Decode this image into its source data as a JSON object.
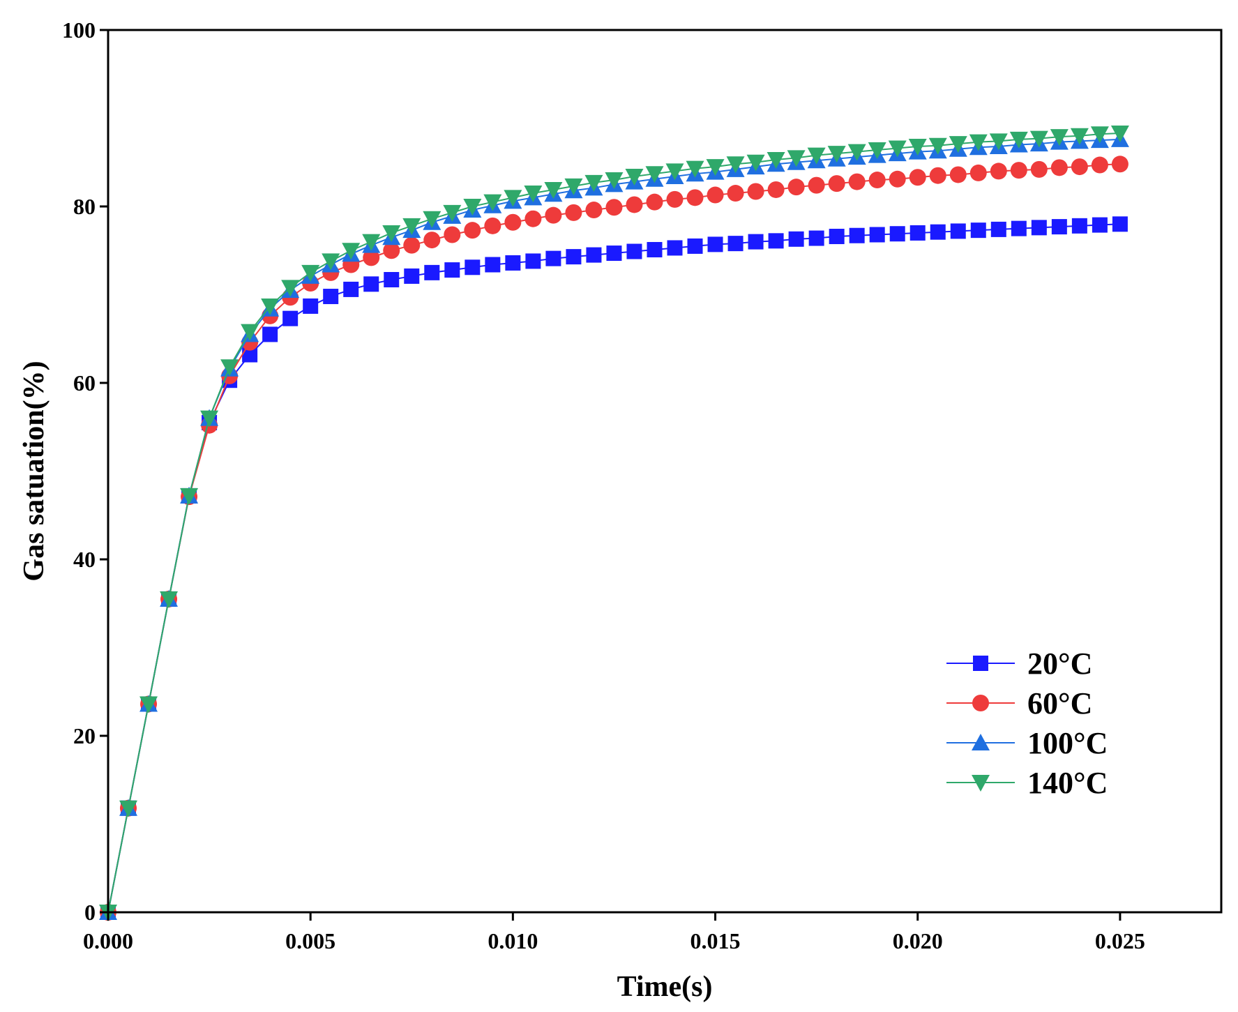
{
  "chart_data": {
    "type": "line",
    "title": "",
    "xlabel": "Time(s)",
    "ylabel": "Gas satuation(%)",
    "xlim": [
      0,
      0.0275
    ],
    "ylim": [
      0,
      100
    ],
    "xticks": [
      0,
      0.005,
      0.01,
      0.015,
      0.02,
      0.025
    ],
    "xtick_labels": [
      "0.000",
      "0.005",
      "0.010",
      "0.015",
      "0.020",
      "0.025"
    ],
    "yticks": [
      0,
      20,
      40,
      60,
      80,
      100
    ],
    "ytick_labels": [
      "0",
      "20",
      "40",
      "60",
      "80",
      "100"
    ],
    "grid": false,
    "legend_position": "lower-right",
    "x": [
      0,
      0.0005,
      0.001,
      0.0015,
      0.002,
      0.0025,
      0.003,
      0.0035,
      0.004,
      0.0045,
      0.005,
      0.0055,
      0.006,
      0.0065,
      0.007,
      0.0075,
      0.008,
      0.0085,
      0.009,
      0.0095,
      0.01,
      0.0105,
      0.011,
      0.0115,
      0.012,
      0.0125,
      0.013,
      0.0135,
      0.014,
      0.0145,
      0.015,
      0.0155,
      0.016,
      0.0165,
      0.017,
      0.0175,
      0.018,
      0.0185,
      0.019,
      0.0195,
      0.02,
      0.0205,
      0.021,
      0.0215,
      0.022,
      0.0225,
      0.023,
      0.0235,
      0.024,
      0.0245,
      0.025
    ],
    "series": [
      {
        "name": "20°C",
        "color": "#1a1aff",
        "marker": "square",
        "values": [
          0,
          11.8,
          23.6,
          35.5,
          47.2,
          55.5,
          60.3,
          63.2,
          65.5,
          67.3,
          68.7,
          69.8,
          70.6,
          71.2,
          71.7,
          72.1,
          72.5,
          72.8,
          73.1,
          73.4,
          73.6,
          73.8,
          74.1,
          74.3,
          74.5,
          74.7,
          74.9,
          75.1,
          75.3,
          75.5,
          75.7,
          75.8,
          76.0,
          76.1,
          76.3,
          76.4,
          76.6,
          76.7,
          76.8,
          76.9,
          77.0,
          77.1,
          77.2,
          77.3,
          77.4,
          77.5,
          77.6,
          77.7,
          77.8,
          77.9,
          78.0
        ]
      },
      {
        "name": "60°C",
        "color": "#ee3b3b",
        "marker": "circle",
        "values": [
          0,
          11.8,
          23.6,
          35.5,
          47.1,
          55.2,
          60.8,
          64.6,
          67.6,
          69.7,
          71.3,
          72.5,
          73.4,
          74.2,
          75.0,
          75.6,
          76.2,
          76.8,
          77.3,
          77.8,
          78.2,
          78.6,
          79.0,
          79.3,
          79.6,
          79.9,
          80.2,
          80.5,
          80.8,
          81.0,
          81.3,
          81.5,
          81.7,
          81.9,
          82.2,
          82.4,
          82.6,
          82.8,
          83.0,
          83.1,
          83.3,
          83.5,
          83.6,
          83.8,
          84.0,
          84.1,
          84.2,
          84.4,
          84.5,
          84.7,
          84.8
        ]
      },
      {
        "name": "100°C",
        "color": "#1f6fe0",
        "marker": "triangle-up",
        "values": [
          0,
          11.8,
          23.6,
          35.5,
          47.2,
          56.0,
          61.6,
          65.5,
          68.4,
          70.5,
          72.1,
          73.4,
          74.6,
          75.6,
          76.5,
          77.3,
          78.2,
          78.9,
          79.6,
          80.1,
          80.6,
          81.0,
          81.4,
          81.8,
          82.1,
          82.5,
          82.8,
          83.1,
          83.4,
          83.7,
          83.9,
          84.2,
          84.5,
          84.8,
          85.0,
          85.2,
          85.4,
          85.6,
          85.8,
          86.0,
          86.2,
          86.3,
          86.5,
          86.7,
          86.8,
          87.0,
          87.1,
          87.3,
          87.4,
          87.5,
          87.6
        ]
      },
      {
        "name": "140°C",
        "color": "#2fa86a",
        "marker": "triangle-down",
        "values": [
          0,
          11.8,
          23.6,
          35.5,
          47.2,
          56.0,
          61.8,
          65.8,
          68.7,
          70.8,
          72.5,
          73.8,
          75.0,
          76.0,
          77.0,
          77.8,
          78.6,
          79.3,
          80.0,
          80.5,
          81.0,
          81.5,
          81.9,
          82.3,
          82.7,
          83.0,
          83.4,
          83.7,
          84.0,
          84.3,
          84.5,
          84.8,
          85.0,
          85.3,
          85.5,
          85.8,
          86.0,
          86.2,
          86.4,
          86.6,
          86.8,
          86.9,
          87.1,
          87.3,
          87.4,
          87.6,
          87.7,
          87.9,
          88.0,
          88.2,
          88.3
        ]
      }
    ]
  }
}
